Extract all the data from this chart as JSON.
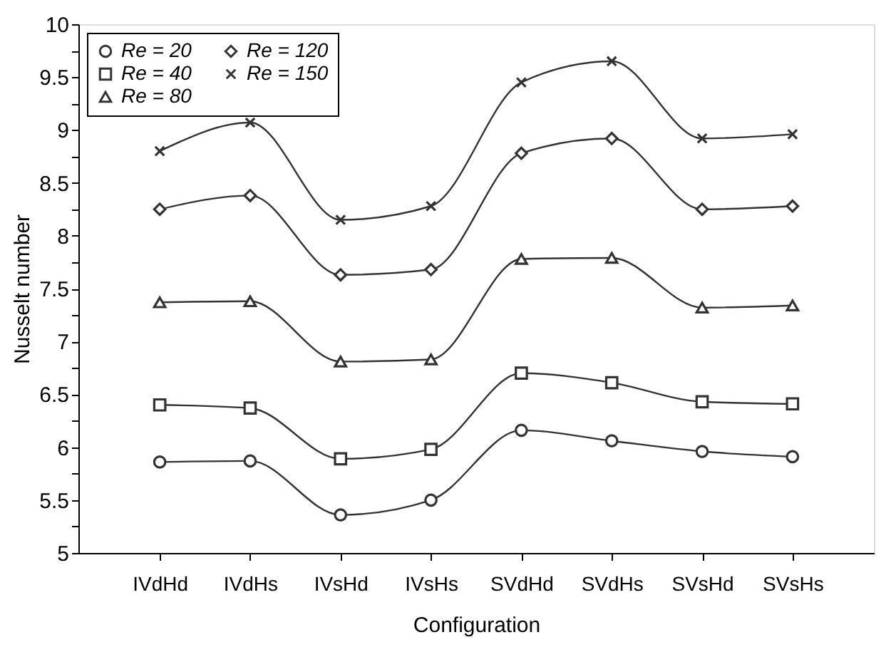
{
  "chart_data": {
    "type": "line",
    "xlabel": "Configuration",
    "ylabel": "Nusselt number",
    "categories": [
      "IVdHd",
      "IVdHs",
      "IVsHd",
      "IVsHs",
      "SVdHd",
      "SVdHs",
      "SVsHd",
      "SVsHs"
    ],
    "series": [
      {
        "name": "Re = 20",
        "color": "#333333",
        "marker": "circle",
        "values": [
          5.86,
          5.87,
          5.36,
          5.5,
          6.16,
          6.06,
          5.96,
          5.91
        ]
      },
      {
        "name": "Re = 40",
        "color": "#333333",
        "marker": "square",
        "values": [
          6.4,
          6.37,
          5.89,
          5.98,
          6.7,
          6.61,
          6.43,
          6.41
        ]
      },
      {
        "name": "Re = 80",
        "color": "#333333",
        "marker": "triangle",
        "values": [
          7.37,
          7.38,
          6.81,
          6.83,
          7.78,
          7.79,
          7.32,
          7.34
        ]
      },
      {
        "name": "Re = 120",
        "color": "#333333",
        "marker": "diamond",
        "values": [
          8.25,
          8.38,
          7.63,
          7.68,
          8.78,
          8.92,
          8.25,
          8.28
        ]
      },
      {
        "name": "Re = 150",
        "color": "#333333",
        "marker": "cross",
        "values": [
          8.8,
          9.07,
          8.15,
          8.28,
          9.45,
          9.65,
          8.92,
          8.96
        ]
      }
    ],
    "ylim": [
      5,
      10
    ],
    "yticks": [
      5,
      {
        "value": 5.25,
        "label": null
      },
      5.5,
      {
        "value": 5.75,
        "label": null
      },
      6,
      {
        "value": 6.25,
        "label": null
      },
      6.5,
      {
        "value": 6.75,
        "label": null
      },
      7,
      {
        "value": 7.25,
        "label": null
      },
      7.5,
      {
        "value": 7.75,
        "label": null
      },
      8,
      {
        "value": 8.25,
        "label": null
      },
      8.5,
      {
        "value": 8.75,
        "label": null
      },
      9,
      {
        "value": 9.25,
        "label": null
      },
      9.5,
      {
        "value": 9.75,
        "label": null
      },
      10
    ],
    "grid": false,
    "legend": "top left",
    "line_style": "solid"
  }
}
